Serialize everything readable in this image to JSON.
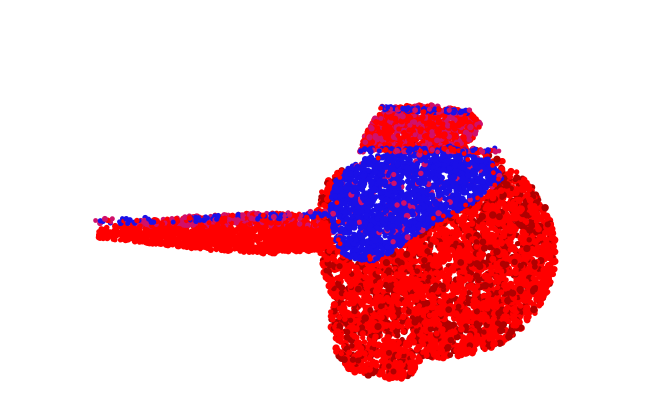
{
  "scene": {
    "description_visible_text": "",
    "background_color": "#ffffff",
    "colors": {
      "primary_particles": "#ff0000",
      "inner_particles": "#1a10e8",
      "mixed_particles": "#d0106a",
      "dark_shade": "#b00000"
    },
    "structure": {
      "body": "particle-cloud-body",
      "tail": "particle-cloud-tail",
      "cap": "particle-cloud-cap",
      "core": "particle-cloud-core"
    }
  }
}
